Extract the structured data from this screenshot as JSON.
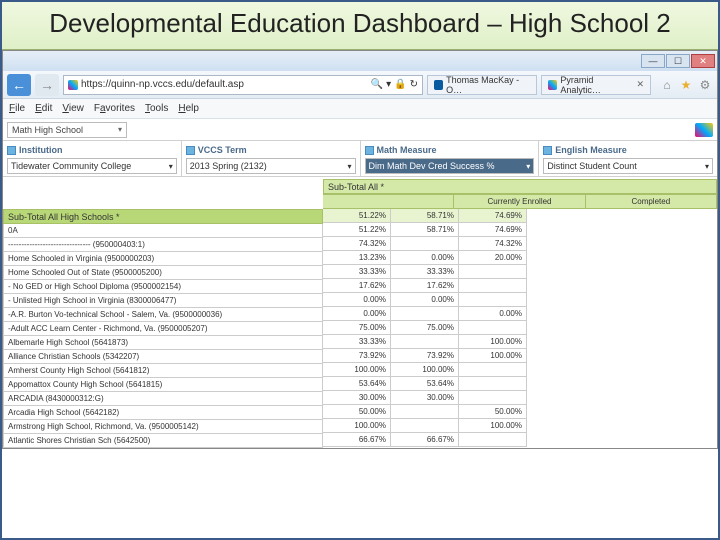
{
  "slide": {
    "title": "Developmental Education Dashboard – High School 2"
  },
  "window": {
    "min": "—",
    "max": "☐",
    "close": "✕"
  },
  "nav": {
    "url": "https://quinn-np.vccs.edu/default.asp",
    "search_hint": "🔍 ▾",
    "lock": "🔒",
    "refresh": "↻"
  },
  "tabs": [
    {
      "label": "Thomas MacKay - O…"
    },
    {
      "label": "Pyramid Analytic…"
    }
  ],
  "tool_icons": {
    "home": "⌂",
    "star": "★",
    "gear": "⚙"
  },
  "menu": {
    "file": "File",
    "edit": "Edit",
    "view": "View",
    "favorites": "Favorites",
    "tools": "Tools",
    "help": "Help"
  },
  "topfilter": {
    "value": "Math High School"
  },
  "panels": {
    "institution": {
      "title": "Institution",
      "value": "Tidewater Community College"
    },
    "term": {
      "title": "VCCS Term",
      "value": "2013 Spring (2132)"
    },
    "math": {
      "title": "Math Measure",
      "value": "Dim Math Dev Cred Success %"
    },
    "english": {
      "title": "English Measure",
      "value": "Distinct Student Count"
    }
  },
  "grid": {
    "top_label": "Sub-Total All *",
    "col1": "",
    "col2": "Currently Enrolled",
    "col3": "Completed",
    "subtotal_label": "Sub-Total All High Schools *",
    "subtotal": [
      "51.22%",
      "58.71%",
      "74.69%"
    ],
    "rows": [
      {
        "label": "0A",
        "v": [
          "51.22%",
          "58.71%",
          "74.69%"
        ]
      },
      {
        "label": "------------------------------- (950000403:1)",
        "v": [
          "74.32%",
          "",
          "74.32%"
        ]
      },
      {
        "label": "Home Schooled in Virginia (9500000203)",
        "v": [
          "13.23%",
          "0.00%",
          "20.00%"
        ]
      },
      {
        "label": "Home Schooled Out of State (9500005200)",
        "v": [
          "33.33%",
          "33.33%",
          ""
        ]
      },
      {
        "label": "- No GED or High School Diploma (9500002154)",
        "v": [
          "17.62%",
          "17.62%",
          ""
        ]
      },
      {
        "label": "- Unlisted High School in Virginia (8300006477)",
        "v": [
          "0.00%",
          "0.00%",
          ""
        ]
      },
      {
        "label": "-A.R. Burton Vo-technical School - Salem, Va. (9500000036)",
        "v": [
          "0.00%",
          "",
          "0.00%"
        ]
      },
      {
        "label": "-Adult ACC Learn Center - Richmond, Va. (9500005207)",
        "v": [
          "75.00%",
          "75.00%",
          ""
        ]
      },
      {
        "label": "Albemarle High School (5641873)",
        "v": [
          "33.33%",
          "",
          "100.00%"
        ]
      },
      {
        "label": "Alliance Christian Schools (5342207)",
        "v": [
          "73.92%",
          "73.92%",
          "100.00%"
        ]
      },
      {
        "label": "Amherst County High School (5641812)",
        "v": [
          "100.00%",
          "100.00%",
          ""
        ]
      },
      {
        "label": "Appomattox County High School (5641815)",
        "v": [
          "53.64%",
          "53.64%",
          ""
        ]
      },
      {
        "label": "ARCADIA (8430000312:G)",
        "v": [
          "30.00%",
          "30.00%",
          ""
        ]
      },
      {
        "label": "Arcadia High School (5642182)",
        "v": [
          "50.00%",
          "",
          "50.00%"
        ]
      },
      {
        "label": "Armstrong High School, Richmond, Va. (9500005142)",
        "v": [
          "100.00%",
          "",
          "100.00%"
        ]
      },
      {
        "label": "Atlantic Shores Christian Sch (5642500)",
        "v": [
          "66.67%",
          "66.67%",
          ""
        ]
      }
    ]
  }
}
